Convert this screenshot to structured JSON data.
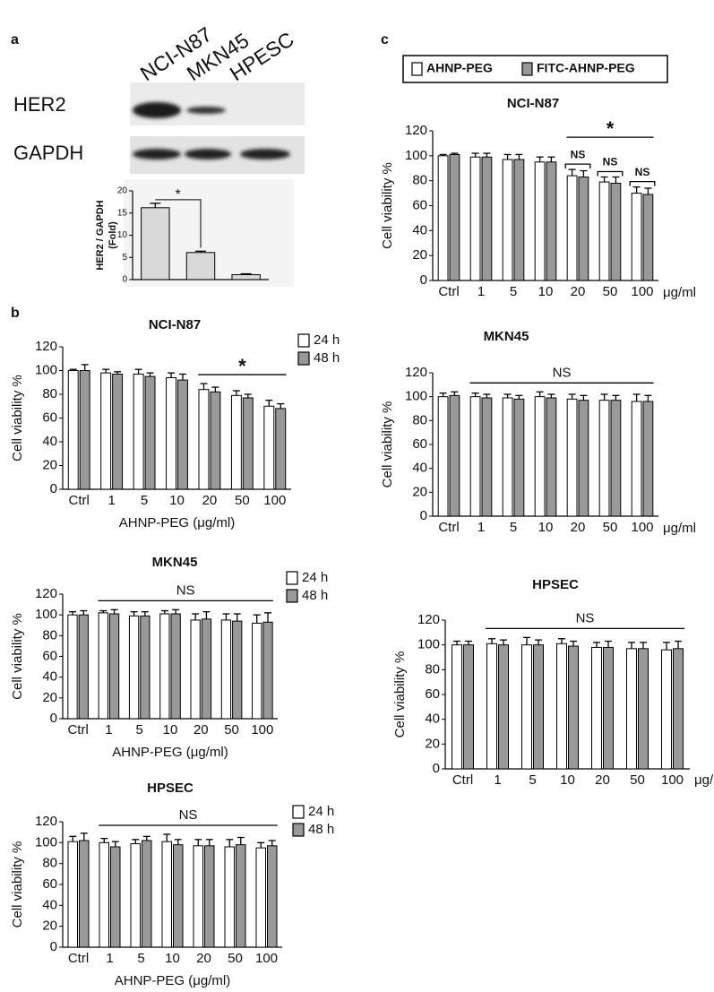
{
  "figure": {
    "panel_labels": [
      "a",
      "b",
      "c"
    ],
    "blot": {
      "lanes": [
        "NCI-N87",
        "MKN45",
        "HPESC"
      ],
      "rows": [
        "HER2",
        "GAPDH"
      ]
    }
  },
  "chart_data": [
    {
      "type": "bar",
      "y_label": [
        "HER2 / GAPDH",
        "(Fold)"
      ],
      "values": [
        16.2,
        6.1,
        1.1
      ],
      "errors": [
        1.0,
        0.3,
        0.2
      ],
      "color": "#d9d9d9",
      "ylim": [
        0,
        20
      ],
      "yticks": [
        0,
        5,
        10,
        15,
        20
      ],
      "annotations": [
        {
          "text": "*",
          "bars": [
            0,
            1
          ]
        }
      ]
    },
    {
      "type": "grouped_bar",
      "title": "NCI-N87",
      "categories": [
        "Ctrl",
        "1",
        "5",
        "10",
        "20",
        "50",
        "100"
      ],
      "x_label": "AHNP-PEG (μg/ml)",
      "y_label": "Cell viability %",
      "series": [
        {
          "name": "24 h",
          "color": "#ffffff",
          "values": [
            100,
            98,
            97,
            94,
            84,
            79,
            70
          ],
          "errors": [
            1,
            3,
            4,
            4,
            5,
            4,
            5
          ]
        },
        {
          "name": "48 h",
          "color": "#999999",
          "values": [
            100,
            97,
            95,
            92,
            82,
            77,
            68
          ],
          "errors": [
            5,
            2,
            3,
            5,
            4,
            3,
            4
          ]
        }
      ],
      "ylim": [
        0,
        120
      ],
      "yticks": [
        0,
        20,
        40,
        60,
        80,
        100,
        120
      ],
      "annotations": [
        {
          "text": "*",
          "span": [
            "20",
            "100"
          ]
        }
      ]
    },
    {
      "type": "grouped_bar",
      "title": "MKN45",
      "categories": [
        "Ctrl",
        "1",
        "5",
        "10",
        "20",
        "50",
        "100"
      ],
      "x_label": "AHNP-PEG (μg/ml)",
      "y_label": "Cell viability %",
      "series": [
        {
          "name": "24 h",
          "color": "#ffffff",
          "values": [
            100,
            102,
            99,
            101,
            95,
            95,
            92
          ],
          "errors": [
            3,
            2,
            4,
            3,
            6,
            6,
            8
          ]
        },
        {
          "name": "48 h",
          "color": "#999999",
          "values": [
            100,
            101,
            99,
            101,
            96,
            94,
            93
          ],
          "errors": [
            4,
            4,
            4,
            4,
            7,
            7,
            9
          ]
        }
      ],
      "ylim": [
        0,
        120
      ],
      "yticks": [
        0,
        20,
        40,
        60,
        80,
        100,
        120
      ],
      "annotations": [
        {
          "text": "NS",
          "span": [
            "1",
            "100"
          ]
        }
      ]
    },
    {
      "type": "grouped_bar",
      "title": "HPSEC",
      "categories": [
        "Ctrl",
        "1",
        "5",
        "10",
        "20",
        "50",
        "100"
      ],
      "x_label": "AHNP-PEG (μg/ml)",
      "y_label": "Cell viability %",
      "series": [
        {
          "name": "24 h",
          "color": "#ffffff",
          "values": [
            101,
            100,
            99,
            101,
            97,
            96,
            95
          ],
          "errors": [
            5,
            4,
            4,
            7,
            6,
            7,
            5
          ]
        },
        {
          "name": "48 h",
          "color": "#999999",
          "values": [
            102,
            96,
            102,
            98,
            97,
            98,
            97
          ],
          "errors": [
            7,
            5,
            4,
            5,
            6,
            7,
            5
          ]
        }
      ],
      "ylim": [
        0,
        120
      ],
      "yticks": [
        0,
        20,
        40,
        60,
        80,
        100,
        120
      ],
      "annotations": [
        {
          "text": "NS",
          "span": [
            "1",
            "100"
          ]
        }
      ]
    },
    {
      "type": "grouped_bar",
      "title": "NCI-N87",
      "categories": [
        "Ctrl",
        "1",
        "5",
        "10",
        "20",
        "50",
        "100"
      ],
      "x_unit": "μg/ml",
      "y_label": "Cell viability %",
      "series": [
        {
          "name": "AHNP-PEG",
          "color": "#ffffff",
          "values": [
            100,
            99,
            97,
            95,
            84,
            79,
            70
          ],
          "errors": [
            1,
            3,
            4,
            4,
            5,
            4,
            5
          ]
        },
        {
          "name": "FITC-AHNP-PEG",
          "color": "#999999",
          "values": [
            101,
            99,
            97,
            95,
            83,
            78,
            69
          ],
          "errors": [
            1,
            3,
            4,
            4,
            5,
            5,
            5
          ]
        }
      ],
      "ylim": [
        0,
        120
      ],
      "yticks": [
        0,
        20,
        40,
        60,
        80,
        100,
        120
      ],
      "annotations": [
        {
          "text": "NS",
          "span": [
            "20",
            "20"
          ]
        },
        {
          "text": "NS",
          "span": [
            "50",
            "50"
          ]
        },
        {
          "text": "NS",
          "span": [
            "100",
            "100"
          ]
        },
        {
          "text": "*",
          "span": [
            "20",
            "100"
          ]
        }
      ]
    },
    {
      "type": "grouped_bar",
      "title": "MKN45",
      "categories": [
        "Ctrl",
        "1",
        "5",
        "10",
        "20",
        "50",
        "100"
      ],
      "x_unit": "μg/ml",
      "y_label": "Cell viability %",
      "series": [
        {
          "color": "#ffffff",
          "values": [
            100,
            100,
            99,
            100,
            98,
            97,
            96
          ],
          "errors": [
            3,
            3,
            3,
            4,
            4,
            5,
            6
          ]
        },
        {
          "color": "#999999",
          "values": [
            101,
            99,
            98,
            99,
            97,
            97,
            96
          ],
          "errors": [
            3,
            3,
            3,
            3,
            4,
            4,
            5
          ]
        }
      ],
      "ylim": [
        0,
        120
      ],
      "yticks": [
        0,
        20,
        40,
        60,
        80,
        100,
        120
      ],
      "annotations": [
        {
          "text": "NS",
          "span": [
            "1",
            "100"
          ]
        }
      ]
    },
    {
      "type": "grouped_bar",
      "title": "HPSEC",
      "categories": [
        "Ctrl",
        "1",
        "5",
        "10",
        "20",
        "50",
        "100"
      ],
      "x_unit": "μg/ml",
      "y_label": "Cell viability %",
      "series": [
        {
          "color": "#ffffff",
          "values": [
            100,
            101,
            100,
            101,
            98,
            97,
            96
          ],
          "errors": [
            3,
            4,
            6,
            4,
            4,
            5,
            6
          ]
        },
        {
          "color": "#999999",
          "values": [
            100,
            100,
            100,
            99,
            98,
            97,
            97
          ],
          "errors": [
            3,
            4,
            4,
            4,
            5,
            5,
            6
          ]
        }
      ],
      "ylim": [
        0,
        120
      ],
      "yticks": [
        0,
        20,
        40,
        60,
        80,
        100,
        120
      ],
      "annotations": [
        {
          "text": "NS",
          "span": [
            "1",
            "100"
          ]
        }
      ]
    }
  ]
}
